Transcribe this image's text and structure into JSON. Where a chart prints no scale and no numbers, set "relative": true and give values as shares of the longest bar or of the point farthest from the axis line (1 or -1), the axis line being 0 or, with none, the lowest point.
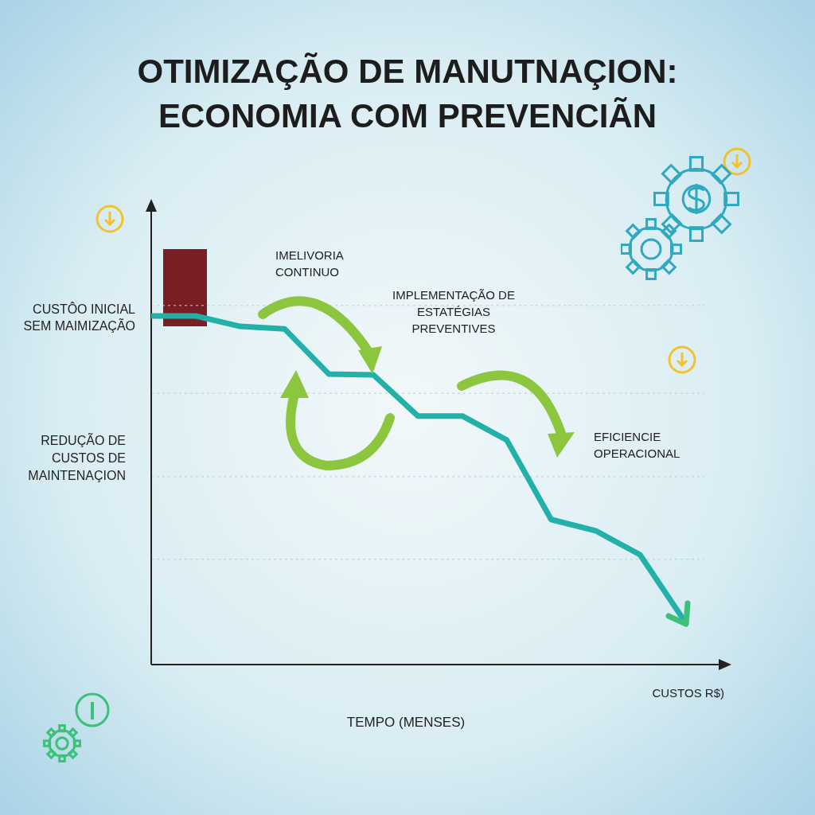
{
  "chart_data": {
    "type": "line",
    "title": "OTIMIZAÇÃO DE MANUTNAÇION: ECONOMIA COM PREVENCIÃN",
    "xlabel": "TEMPO (MENSES)",
    "ylabel": "REDUÇÃO DE CUSTOS DE MAINTENAÇION",
    "relative": true,
    "categories": [
      null,
      null,
      null,
      null,
      null,
      null,
      null,
      null,
      null,
      null,
      null,
      null,
      null
    ],
    "series": [
      {
        "color": "#22b0a8",
        "values": [
          1,
          1,
          0.97,
          0.963,
          0.833,
          0.831,
          0.713,
          0.713,
          0.644,
          0.416,
          0.384,
          0.315,
          0.125
        ]
      }
    ],
    "annotations": [
      "CUSTÔO INICIAL SEM MAIMIZAÇÃO",
      "IMELIVORIA CONTINUO",
      "IMPLEMENTAÇÃO DE ESTATÉGIAS PREVENTIVES",
      "EFICIENCIE OPERACIONAL",
      "CUSTOS R$)"
    ],
    "ref_lines": [
      {
        "axis": "y",
        "value": 1.03,
        "line_style": "dotted"
      },
      {
        "axis": "y",
        "value": 0.778,
        "line_style": "dotted"
      },
      {
        "axis": "y",
        "value": 0.539,
        "line_style": "dotted"
      },
      {
        "axis": "y",
        "value": 0.302,
        "line_style": "dotted"
      }
    ],
    "legend": false,
    "marker": "none",
    "line_style": "solid"
  }
}
